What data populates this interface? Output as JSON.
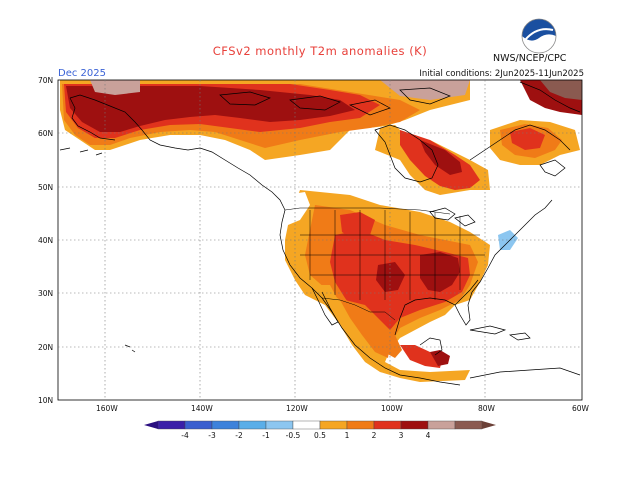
{
  "header": {
    "title": "CFSv2 monthly T2m anomalies (K)",
    "agency": "NWS/NCEP/CPC",
    "month": "Dec 2025",
    "initial_conditions": "Initial conditions: 2Jun2025-11Jun2025"
  },
  "axes": {
    "lat_labels": [
      "70N",
      "60N",
      "50N",
      "40N",
      "30N",
      "20N",
      "10N"
    ],
    "lon_labels": [
      "160W",
      "140W",
      "120W",
      "100W",
      "80W",
      "60W"
    ]
  },
  "colorbar": {
    "ticks": [
      "-4",
      "-3",
      "-2",
      "-1",
      "-0.5",
      "0.5",
      "1",
      "2",
      "3",
      "4"
    ],
    "colors": [
      "#3a1fa8",
      "#3a5fcf",
      "#3d82db",
      "#5aaee8",
      "#8cc6f0",
      "#ffffff",
      "#f5a623",
      "#f07b17",
      "#e0321d",
      "#9e1010",
      "#c9a19a",
      "#8a5a50"
    ]
  },
  "palette": {
    "light_orange": "#f5a623",
    "orange": "#f07b17",
    "red": "#e0321d",
    "dark_red": "#9e1010",
    "pinkish_brown": "#c9a19a",
    "brown": "#8a5a50",
    "light_blue": "#8cc6f0",
    "blue": "#3d82db"
  }
}
